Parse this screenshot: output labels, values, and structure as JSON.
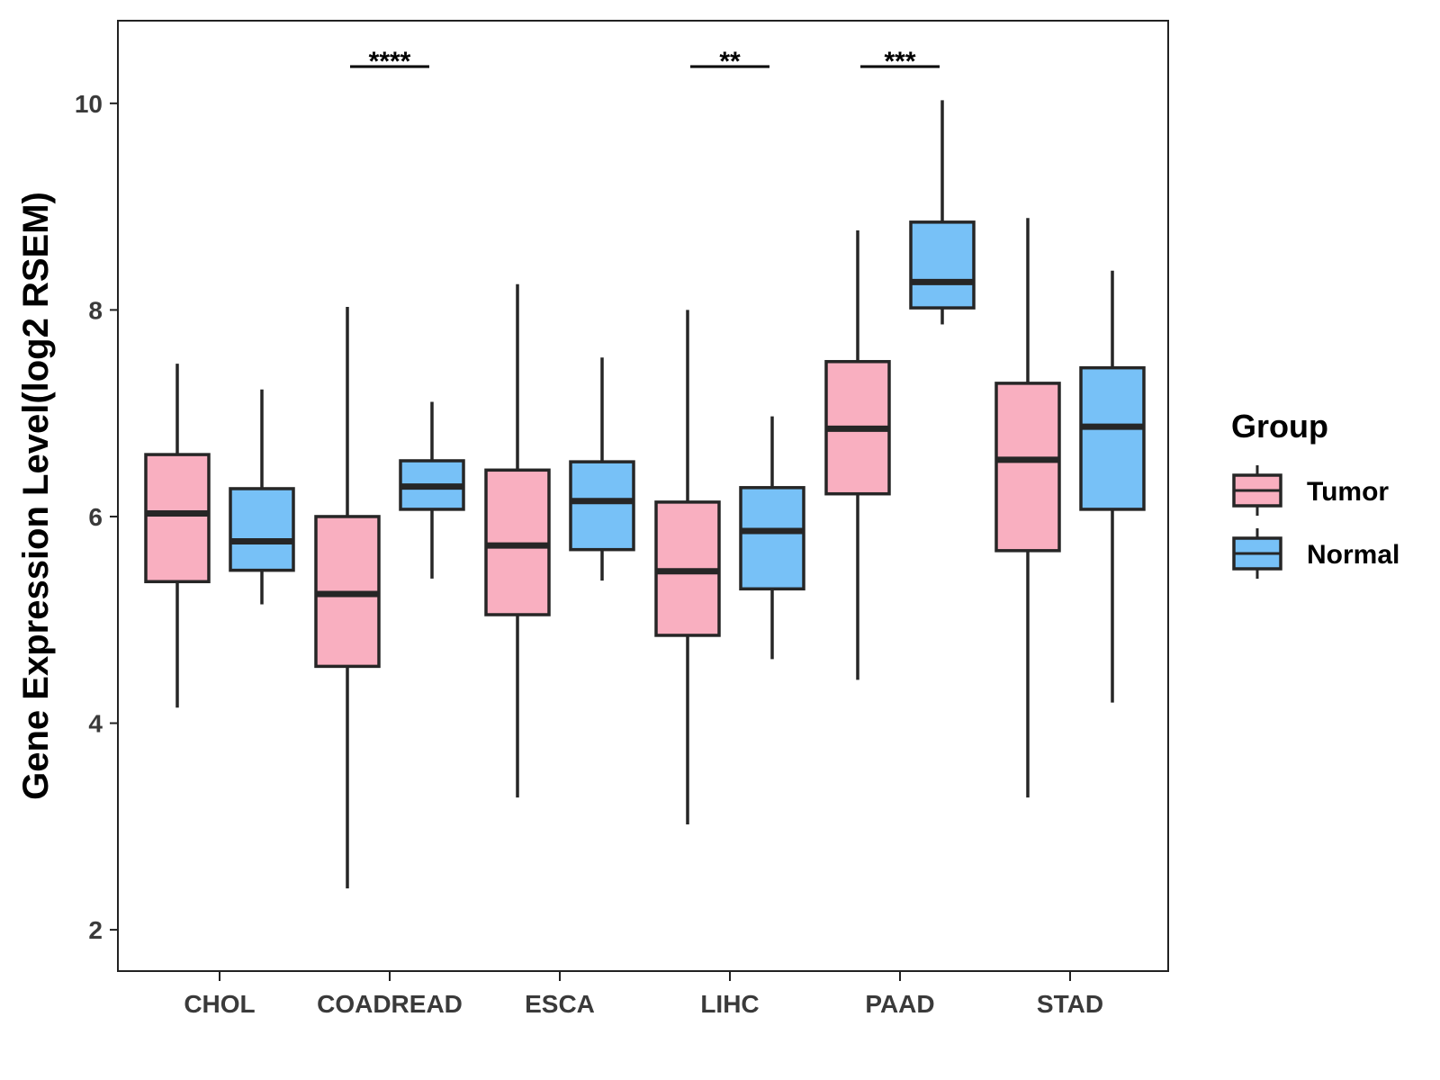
{
  "chart_data": {
    "type": "boxplot",
    "title": "",
    "xlabel": "",
    "ylabel": "Gene Expression Level(log2 RSEM)",
    "ylim": [
      1.6,
      10.8
    ],
    "yticks": [
      2,
      4,
      6,
      8,
      10
    ],
    "categories": [
      "CHOL",
      "COADREAD",
      "ESCA",
      "LIHC",
      "PAAD",
      "STAD"
    ],
    "legend": {
      "title": "Group",
      "position": "right"
    },
    "series": [
      {
        "name": "Tumor",
        "color": "#F9AFC0",
        "boxes": [
          {
            "min": 4.15,
            "q1": 5.37,
            "median": 6.03,
            "q3": 6.6,
            "max": 7.48
          },
          {
            "min": 2.4,
            "q1": 4.55,
            "median": 5.25,
            "q3": 6.0,
            "max": 8.03
          },
          {
            "min": 3.28,
            "q1": 5.05,
            "median": 5.72,
            "q3": 6.45,
            "max": 8.25
          },
          {
            "min": 3.02,
            "q1": 4.85,
            "median": 5.47,
            "q3": 6.14,
            "max": 8.0
          },
          {
            "min": 4.42,
            "q1": 6.22,
            "median": 6.85,
            "q3": 7.5,
            "max": 8.77
          },
          {
            "min": 3.28,
            "q1": 5.67,
            "median": 6.55,
            "q3": 7.29,
            "max": 8.89
          }
        ]
      },
      {
        "name": "Normal",
        "color": "#77C1F7",
        "boxes": [
          {
            "min": 5.15,
            "q1": 5.48,
            "median": 5.76,
            "q3": 6.27,
            "max": 7.23
          },
          {
            "min": 5.4,
            "q1": 6.07,
            "median": 6.29,
            "q3": 6.54,
            "max": 7.11
          },
          {
            "min": 5.38,
            "q1": 5.68,
            "median": 6.15,
            "q3": 6.53,
            "max": 7.54
          },
          {
            "min": 4.62,
            "q1": 5.3,
            "median": 5.86,
            "q3": 6.28,
            "max": 6.97
          },
          {
            "min": 7.86,
            "q1": 8.02,
            "median": 8.27,
            "q3": 8.85,
            "max": 10.03
          },
          {
            "min": 4.2,
            "q1": 6.07,
            "median": 6.87,
            "q3": 7.44,
            "max": 8.38
          }
        ]
      }
    ],
    "significance": [
      {
        "category": "COADREAD",
        "label": "****"
      },
      {
        "category": "LIHC",
        "label": "**"
      },
      {
        "category": "PAAD",
        "label": "***"
      }
    ]
  }
}
